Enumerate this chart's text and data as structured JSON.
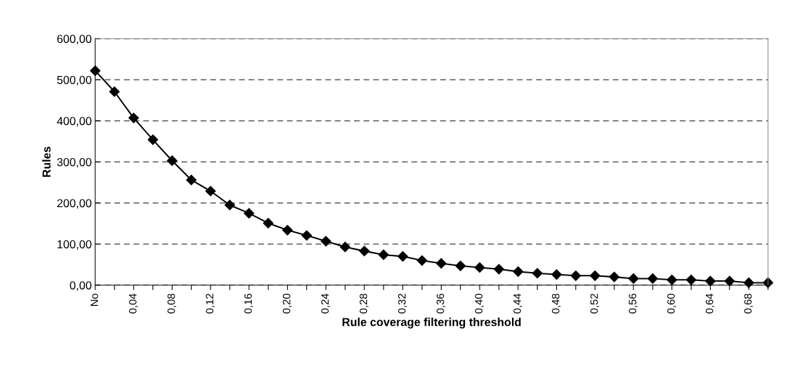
{
  "chart_data": {
    "type": "line",
    "xlabel": "Rule coverage filtering threshold",
    "ylabel": "Rules",
    "categories": [
      "No",
      null,
      "0,04",
      null,
      "0,08",
      null,
      "0,12",
      null,
      "0,16",
      null,
      "0,20",
      null,
      "0,24",
      null,
      "0,28",
      null,
      "0,32",
      null,
      "0,36",
      null,
      "0,40",
      null,
      "0,44",
      null,
      "0,48",
      null,
      "0,52",
      null,
      "0,56",
      null,
      "0,60",
      null,
      "0,64",
      null,
      "0,68",
      null
    ],
    "series": [
      {
        "color": "#000000",
        "values": [
          522,
          471,
          407,
          354,
          303,
          256,
          229,
          195,
          175,
          151,
          134,
          121,
          107,
          93,
          83,
          74,
          70,
          60,
          53,
          47,
          43,
          39,
          33,
          29,
          26,
          23,
          23,
          20,
          16,
          16,
          13,
          13,
          10,
          10,
          6,
          6
        ]
      }
    ],
    "ylim": [
      0,
      600
    ],
    "yticks": [
      {
        "value": 0,
        "label": "0,00"
      },
      {
        "value": 100,
        "label": "100,00"
      },
      {
        "value": 200,
        "label": "200,00"
      },
      {
        "value": 300,
        "label": "300,00"
      },
      {
        "value": 400,
        "label": "400,00"
      },
      {
        "value": 500,
        "label": "500,00"
      },
      {
        "value": 600,
        "label": "600,00"
      }
    ],
    "grid": "y",
    "marker": "diamond",
    "line_style": "solid"
  }
}
